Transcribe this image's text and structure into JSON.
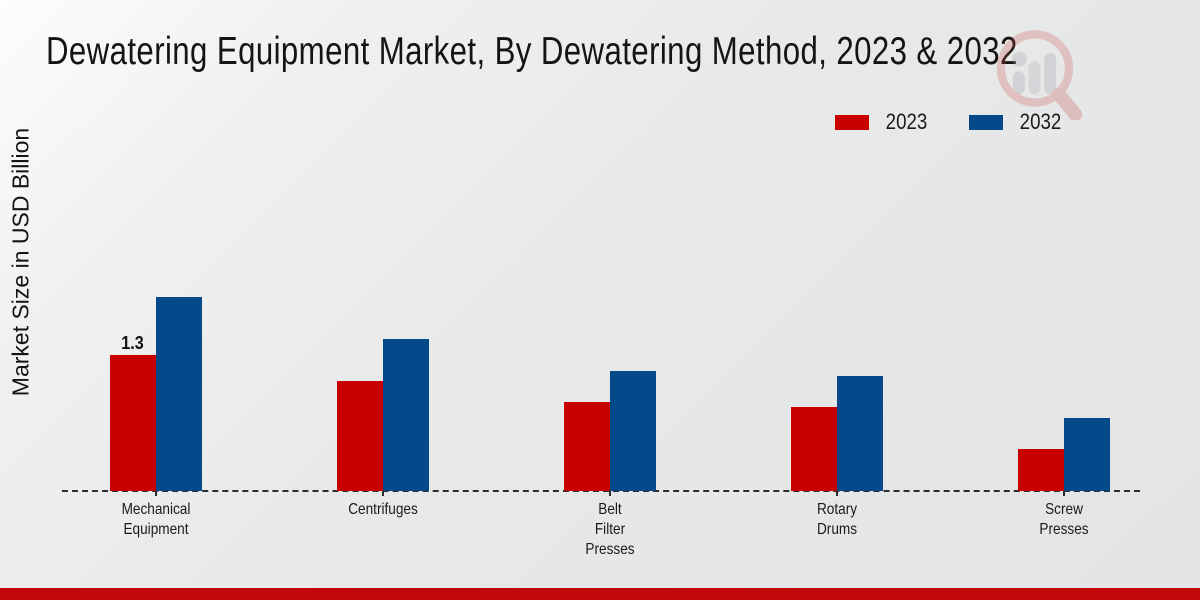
{
  "chart_data": {
    "type": "bar",
    "title": "Dewatering Equipment Market, By Dewatering Method, 2023 & 2032",
    "ylabel": "Market Size in USD Billion",
    "xlabel": "",
    "categories": [
      "Mechanical Equipment",
      "Centrifuges",
      "Belt Filter Presses",
      "Rotary Drums",
      "Screw Presses"
    ],
    "category_label_lines": [
      [
        "Mechanical",
        "Equipment"
      ],
      [
        "Centrifuges"
      ],
      [
        "Belt",
        "Filter",
        "Presses"
      ],
      [
        "Rotary",
        "Drums"
      ],
      [
        "Screw",
        "Presses"
      ]
    ],
    "series": [
      {
        "name": "2023",
        "color": "#c80000",
        "values": [
          1.3,
          1.05,
          0.85,
          0.8,
          0.4
        ],
        "data_labels": [
          "1.3",
          "",
          "",
          "",
          ""
        ]
      },
      {
        "name": "2032",
        "color": "#04498a",
        "values": [
          1.85,
          1.45,
          1.15,
          1.1,
          0.7
        ],
        "data_labels": [
          "",
          "",
          "",
          "",
          ""
        ]
      }
    ],
    "yaxis": {
      "ticks_visible": false,
      "baseline_style": "dashed"
    },
    "grid": false,
    "legend_position": "top-right"
  },
  "watermark_icon": "magnifier-bar-chart-logo",
  "footer_bar_color": "#c20808",
  "axis_color": "#2d2d2d"
}
